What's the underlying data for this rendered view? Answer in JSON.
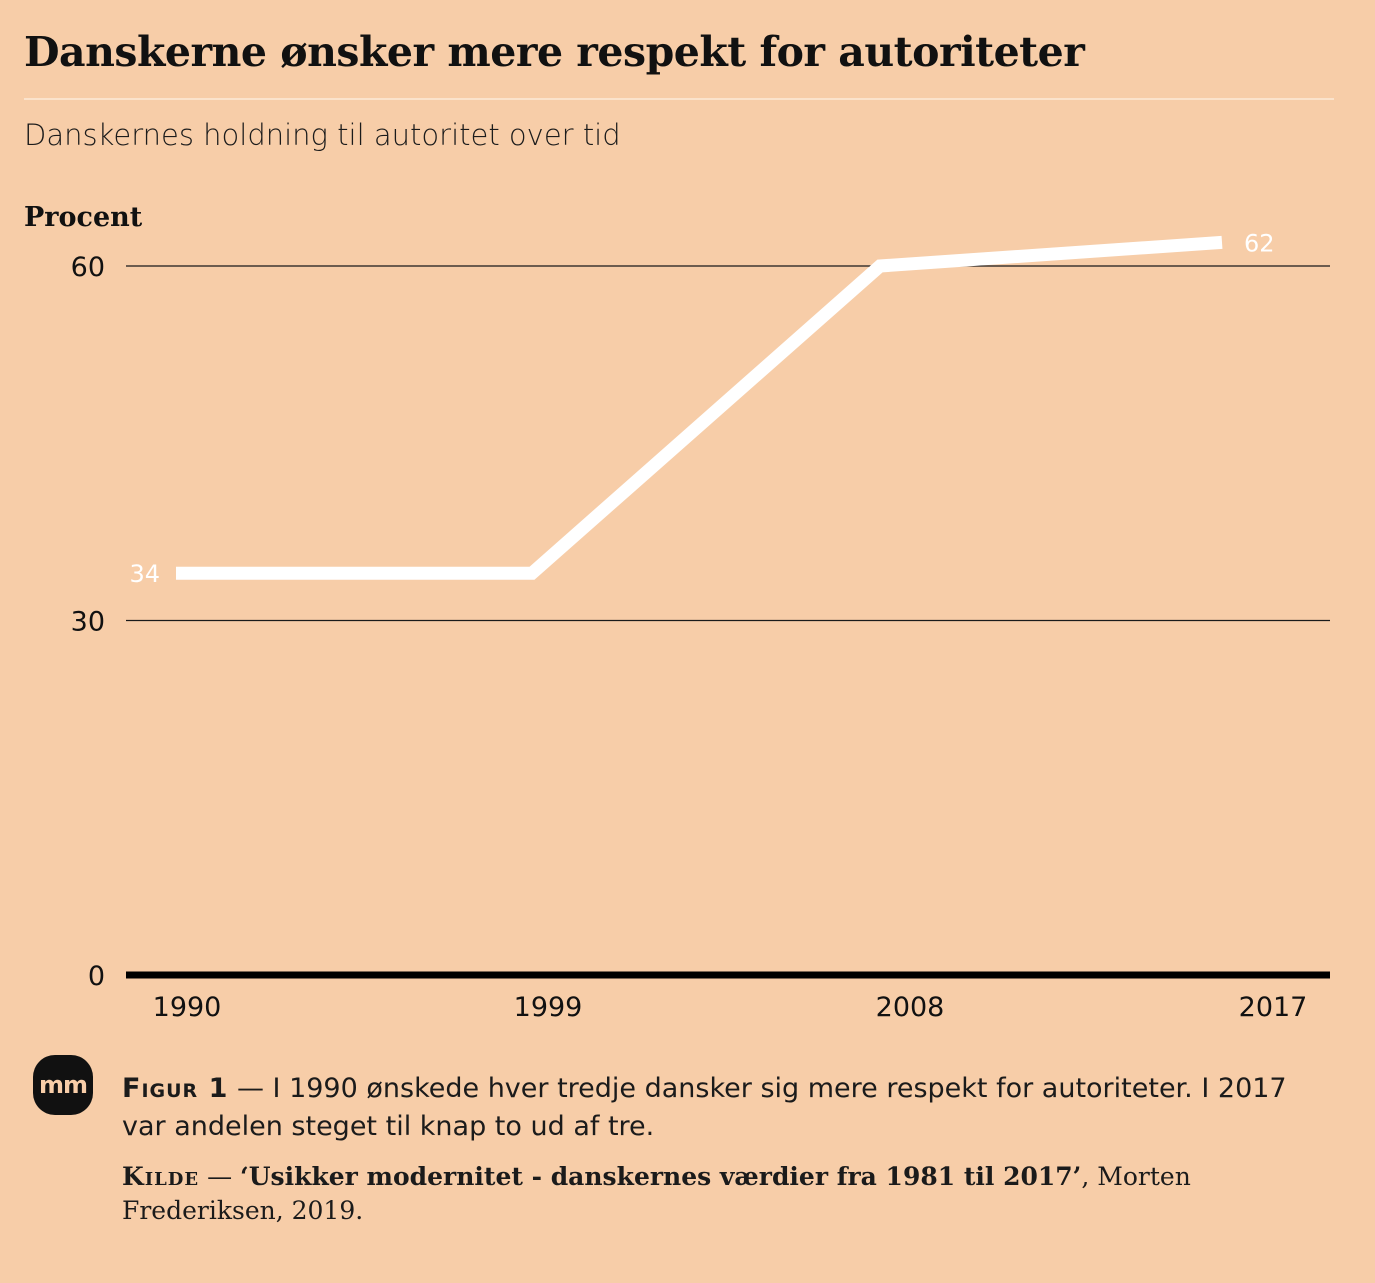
{
  "header": {
    "title": "Danskerne ønsker mere respekt for autoriteter",
    "subtitle": "Danskernes holdning til autoritet over tid",
    "unit_label": "Procent"
  },
  "chart_data": {
    "type": "line",
    "title": "Danskerne ønsker mere respekt for autoriteter",
    "subtitle": "Danskernes holdning til autoritet over tid",
    "ylabel": "Procent",
    "xlabel": "",
    "x": [
      "1990",
      "1999",
      "2008",
      "2017"
    ],
    "series": [
      {
        "values": [
          34,
          34,
          60,
          62
        ]
      }
    ],
    "ylim": [
      0,
      64
    ],
    "yticks": [
      0,
      30,
      60
    ],
    "data_labels": [
      {
        "x": "1990",
        "value": 34,
        "text": "34"
      },
      {
        "x": "2017",
        "value": 62,
        "text": "62"
      }
    ],
    "grid": true,
    "legend": "none",
    "line_color": "#ffffff",
    "gridline_color": "#1a1a1a",
    "baseline_color": "#000000"
  },
  "caption": {
    "lead": "Figur 1",
    "dash": " — ",
    "text": "I 1990 ønskede hver tredje dansker sig mere respekt for autoriteter. I 2017 var andelen steget til knap to ud af tre."
  },
  "source": {
    "lead": "Kilde",
    "dash": " — ",
    "book": "‘Usikker modernitet - danskernes værdier fra 1981 til 2017’",
    "rest": ", Morten Frederiksen, 2019."
  },
  "logo": {
    "text": "mm"
  },
  "colors": {
    "background": "#f7cda8"
  }
}
